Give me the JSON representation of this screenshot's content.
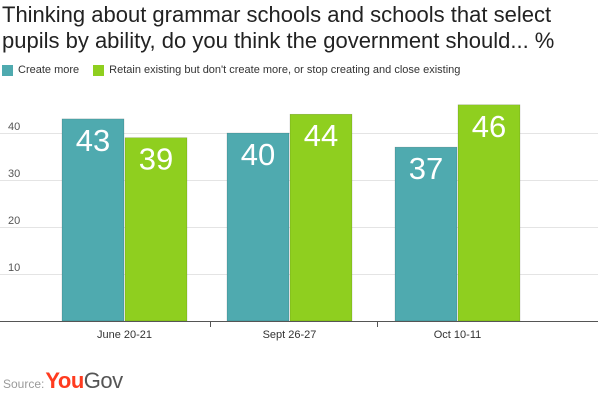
{
  "chart_data": {
    "type": "bar",
    "title": "Thinking about grammar schools and schools that select pupils by ability, do you think the government should... %",
    "categories": [
      "June 20-21",
      "Sept 26-27",
      "Oct 10-11"
    ],
    "series": [
      {
        "name": "Create more",
        "color": "#4faaaf",
        "values": [
          43,
          40,
          37
        ]
      },
      {
        "name": "Retain existing but don't create more, or stop creating and close existing",
        "color": "#8fcf1f",
        "values": [
          39,
          44,
          46
        ]
      }
    ],
    "yticks": [
      10,
      20,
      30,
      40
    ],
    "ylim": [
      0,
      50
    ],
    "grid": true,
    "legend_position": "top-left",
    "xlabel": "",
    "ylabel": ""
  },
  "source": {
    "label": "Source:",
    "brand_part1": "You",
    "brand_part2": "Gov"
  }
}
